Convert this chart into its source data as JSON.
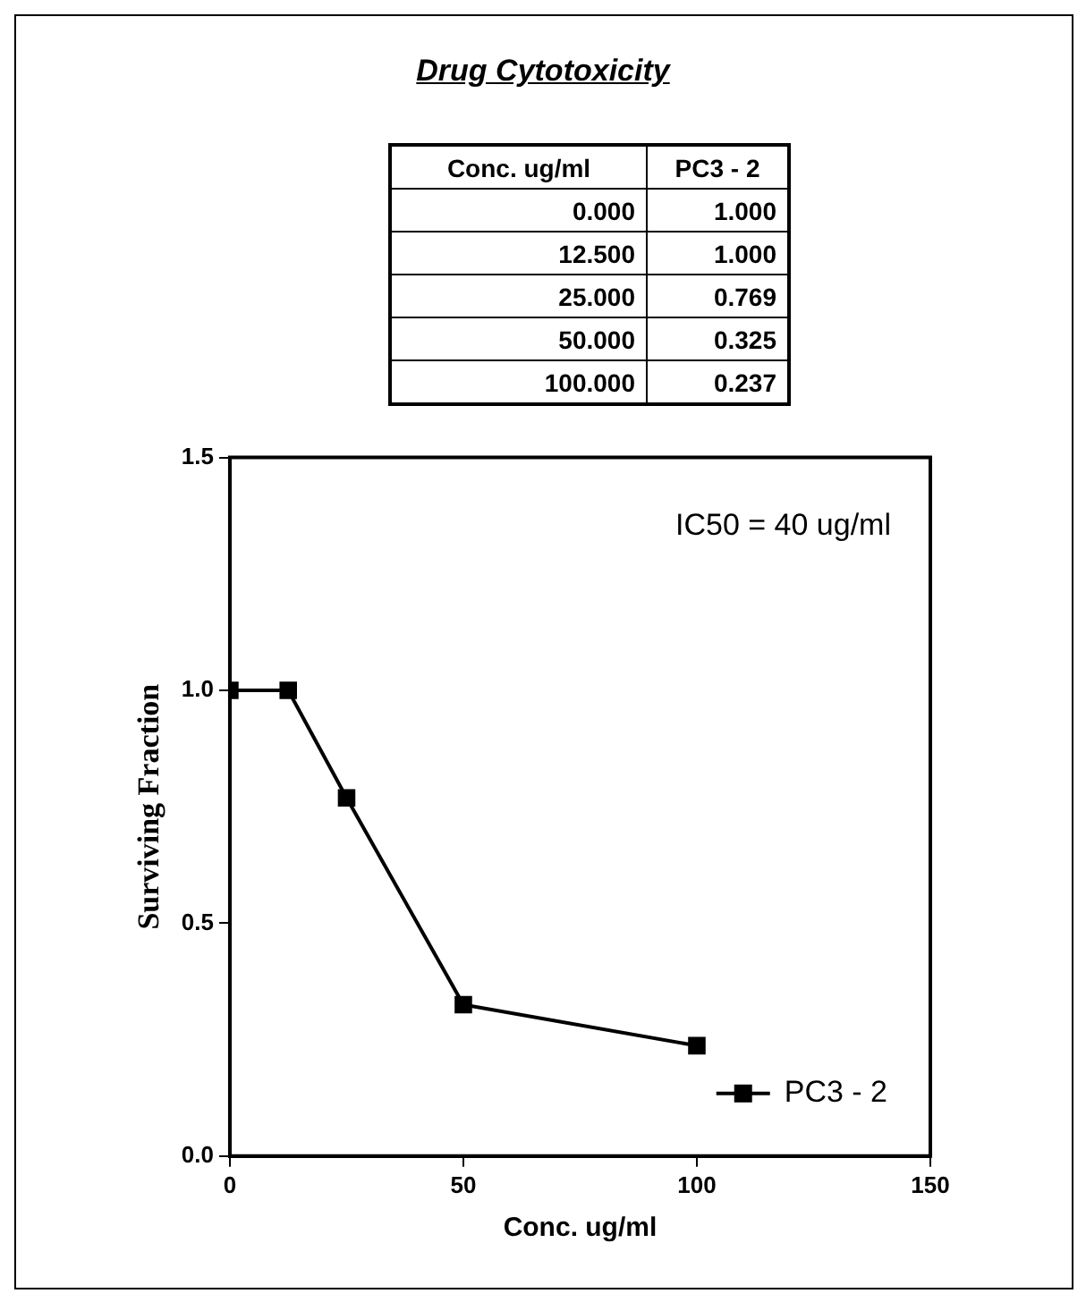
{
  "chart_data": [
    {
      "type": "other",
      "title": "Drug Cytotoxicity",
      "annotations": [
        "Conc. ug/ml",
        "PC3 - 2",
        "0.000",
        "1.000",
        "12.500",
        "1.000",
        "25.000",
        "0.769",
        "50.000",
        "0.325",
        "100.000",
        "0.237"
      ]
    },
    {
      "type": "line",
      "xlabel": "Conc. ug/ml",
      "ylabel": "Surviving Fraction",
      "x": [
        0,
        12.5,
        25,
        50,
        100
      ],
      "series": [
        {
          "name": "PC3 - 2",
          "color": "#000000",
          "values": [
            1.0,
            1.0,
            0.769,
            0.325,
            0.237
          ]
        }
      ],
      "xlim": [
        0,
        150
      ],
      "xticks": [
        0,
        50,
        100,
        150
      ],
      "ylim": [
        0,
        1.5
      ],
      "yticks": [
        {
          "value": 0,
          "label": "0.0"
        },
        {
          "value": 0.5,
          "label": "0.5"
        },
        {
          "value": 1,
          "label": "1.0"
        },
        {
          "value": 1.5,
          "label": "1.5"
        }
      ],
      "annotations": [
        "IC50 = 40 ug/ml"
      ],
      "grid": false,
      "legend": "bottom right",
      "marker": "square",
      "line_style": "solid"
    }
  ]
}
